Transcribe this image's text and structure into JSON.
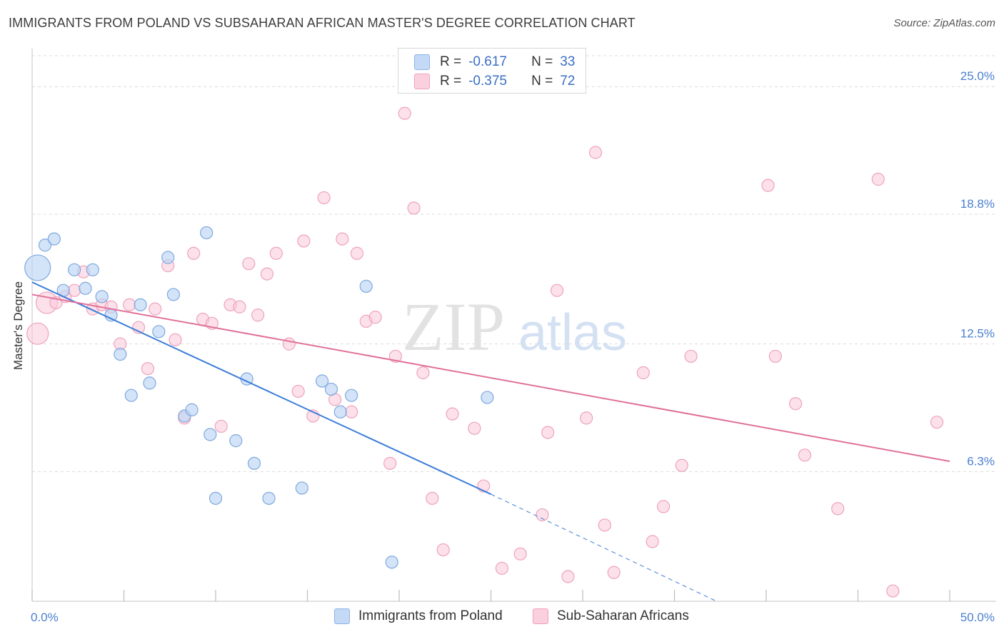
{
  "title": "IMMIGRANTS FROM POLAND VS SUBSAHARAN AFRICAN MASTER'S DEGREE CORRELATION CHART",
  "source": "Source: ZipAtlas.com",
  "watermark": {
    "zip": "ZIP",
    "atlas": "atlas"
  },
  "legend": {
    "rows": [
      {
        "r_label": "R =",
        "r_value": "-0.617",
        "n_label": "N =",
        "n_value": "33"
      },
      {
        "r_label": "R =",
        "r_value": "-0.375",
        "n_label": "N =",
        "n_value": "72"
      }
    ]
  },
  "chart_data": {
    "type": "scatter",
    "title": "IMMIGRANTS FROM POLAND VS SUBSAHARAN AFRICAN MASTER'S DEGREE CORRELATION CHART",
    "xlabel": "",
    "ylabel": "Master's Degree",
    "xlim": [
      0,
      50
    ],
    "ylim": [
      0,
      26.5
    ],
    "x_tick_labels": [
      "0.0%",
      "50.0%"
    ],
    "y_ticks": [
      6.3,
      12.5,
      18.8,
      25.0
    ],
    "y_tick_labels": [
      "6.3%",
      "12.5%",
      "18.8%",
      "25.0%"
    ],
    "grid": "horizontal dashed",
    "legend_position": "top-center",
    "colors": {
      "poland": "#a8c8f0",
      "poland_line": "#3b7dd8",
      "subsaharan": "#f6b7cc",
      "subsaharan_line": "#e0709a",
      "tick": "#4a7fd0"
    },
    "series": [
      {
        "name": "Immigrants from Poland",
        "r": -0.617,
        "n": 33,
        "trend": {
          "x": [
            0,
            25
          ],
          "y": [
            15.5,
            5.2
          ],
          "dashed_extension": {
            "x": [
              25,
              37.3
            ],
            "y": [
              5.2,
              0
            ]
          }
        },
        "points": [
          {
            "x": 0.3,
            "y": 16.2,
            "s": 3
          },
          {
            "x": 0.7,
            "y": 17.3,
            "s": 1
          },
          {
            "x": 1.2,
            "y": 17.6,
            "s": 1
          },
          {
            "x": 1.7,
            "y": 15.1,
            "s": 1
          },
          {
            "x": 2.3,
            "y": 16.1,
            "s": 1
          },
          {
            "x": 2.9,
            "y": 15.2,
            "s": 1
          },
          {
            "x": 3.3,
            "y": 16.1,
            "s": 1
          },
          {
            "x": 3.8,
            "y": 14.8,
            "s": 1
          },
          {
            "x": 4.3,
            "y": 13.9,
            "s": 1
          },
          {
            "x": 4.8,
            "y": 12.0,
            "s": 1
          },
          {
            "x": 5.4,
            "y": 10.0,
            "s": 1
          },
          {
            "x": 5.9,
            "y": 14.4,
            "s": 1
          },
          {
            "x": 6.4,
            "y": 10.6,
            "s": 1
          },
          {
            "x": 6.9,
            "y": 13.1,
            "s": 1
          },
          {
            "x": 7.4,
            "y": 16.7,
            "s": 1
          },
          {
            "x": 7.7,
            "y": 14.9,
            "s": 1
          },
          {
            "x": 8.3,
            "y": 9.0,
            "s": 1
          },
          {
            "x": 8.7,
            "y": 9.3,
            "s": 1
          },
          {
            "x": 9.5,
            "y": 17.9,
            "s": 1
          },
          {
            "x": 9.7,
            "y": 8.1,
            "s": 1
          },
          {
            "x": 10.0,
            "y": 5.0,
            "s": 1
          },
          {
            "x": 11.1,
            "y": 7.8,
            "s": 1
          },
          {
            "x": 11.7,
            "y": 10.8,
            "s": 1
          },
          {
            "x": 12.1,
            "y": 6.7,
            "s": 1
          },
          {
            "x": 12.9,
            "y": 5.0,
            "s": 1
          },
          {
            "x": 14.7,
            "y": 5.5,
            "s": 1
          },
          {
            "x": 15.8,
            "y": 10.7,
            "s": 1
          },
          {
            "x": 16.3,
            "y": 10.3,
            "s": 1
          },
          {
            "x": 16.8,
            "y": 9.2,
            "s": 1
          },
          {
            "x": 17.4,
            "y": 10.0,
            "s": 1
          },
          {
            "x": 18.2,
            "y": 15.3,
            "s": 1
          },
          {
            "x": 19.6,
            "y": 1.9,
            "s": 1
          },
          {
            "x": 24.8,
            "y": 9.9,
            "s": 1
          }
        ]
      },
      {
        "name": "Sub-Saharan Africans",
        "r": -0.375,
        "n": 72,
        "trend": {
          "x": [
            0,
            50
          ],
          "y": [
            14.9,
            6.8
          ]
        },
        "points": [
          {
            "x": 0.3,
            "y": 13.0,
            "s": 2
          },
          {
            "x": 0.8,
            "y": 14.5,
            "s": 2
          },
          {
            "x": 1.3,
            "y": 14.5,
            "s": 1
          },
          {
            "x": 1.8,
            "y": 14.8,
            "s": 1
          },
          {
            "x": 2.3,
            "y": 15.1,
            "s": 1
          },
          {
            "x": 2.8,
            "y": 16.0,
            "s": 1
          },
          {
            "x": 3.3,
            "y": 14.2,
            "s": 1
          },
          {
            "x": 3.8,
            "y": 14.4,
            "s": 1
          },
          {
            "x": 4.3,
            "y": 14.3,
            "s": 1
          },
          {
            "x": 4.8,
            "y": 12.5,
            "s": 1
          },
          {
            "x": 5.3,
            "y": 14.4,
            "s": 1
          },
          {
            "x": 5.8,
            "y": 13.3,
            "s": 1
          },
          {
            "x": 6.3,
            "y": 11.3,
            "s": 1
          },
          {
            "x": 6.7,
            "y": 14.2,
            "s": 1
          },
          {
            "x": 7.4,
            "y": 16.3,
            "s": 1
          },
          {
            "x": 7.8,
            "y": 12.7,
            "s": 1
          },
          {
            "x": 8.3,
            "y": 8.9,
            "s": 1
          },
          {
            "x": 8.8,
            "y": 16.9,
            "s": 1
          },
          {
            "x": 9.3,
            "y": 13.7,
            "s": 1
          },
          {
            "x": 9.8,
            "y": 13.5,
            "s": 1
          },
          {
            "x": 10.3,
            "y": 8.5,
            "s": 1
          },
          {
            "x": 10.8,
            "y": 14.4,
            "s": 1
          },
          {
            "x": 11.3,
            "y": 14.3,
            "s": 1
          },
          {
            "x": 11.8,
            "y": 16.4,
            "s": 1
          },
          {
            "x": 12.3,
            "y": 13.9,
            "s": 1
          },
          {
            "x": 12.8,
            "y": 15.9,
            "s": 1
          },
          {
            "x": 13.3,
            "y": 16.9,
            "s": 1
          },
          {
            "x": 14.0,
            "y": 12.5,
            "s": 1
          },
          {
            "x": 14.5,
            "y": 10.2,
            "s": 1
          },
          {
            "x": 14.8,
            "y": 17.5,
            "s": 1
          },
          {
            "x": 15.3,
            "y": 9.0,
            "s": 1
          },
          {
            "x": 15.9,
            "y": 19.6,
            "s": 1
          },
          {
            "x": 16.5,
            "y": 9.8,
            "s": 1
          },
          {
            "x": 16.9,
            "y": 17.6,
            "s": 1
          },
          {
            "x": 17.4,
            "y": 9.2,
            "s": 1
          },
          {
            "x": 17.7,
            "y": 16.9,
            "s": 1
          },
          {
            "x": 18.2,
            "y": 13.6,
            "s": 1
          },
          {
            "x": 18.7,
            "y": 13.8,
            "s": 1
          },
          {
            "x": 19.5,
            "y": 6.7,
            "s": 1
          },
          {
            "x": 19.8,
            "y": 11.9,
            "s": 1
          },
          {
            "x": 20.3,
            "y": 23.7,
            "s": 1
          },
          {
            "x": 20.8,
            "y": 19.1,
            "s": 1
          },
          {
            "x": 21.3,
            "y": 11.1,
            "s": 1
          },
          {
            "x": 21.8,
            "y": 5.0,
            "s": 1
          },
          {
            "x": 22.4,
            "y": 2.5,
            "s": 1
          },
          {
            "x": 22.9,
            "y": 9.1,
            "s": 1
          },
          {
            "x": 24.1,
            "y": 8.4,
            "s": 1
          },
          {
            "x": 24.6,
            "y": 5.6,
            "s": 1
          },
          {
            "x": 25.6,
            "y": 1.6,
            "s": 1
          },
          {
            "x": 26.6,
            "y": 2.3,
            "s": 1
          },
          {
            "x": 27.8,
            "y": 4.2,
            "s": 1
          },
          {
            "x": 28.1,
            "y": 8.2,
            "s": 1
          },
          {
            "x": 28.6,
            "y": 15.1,
            "s": 1
          },
          {
            "x": 29.2,
            "y": 1.2,
            "s": 1
          },
          {
            "x": 30.2,
            "y": 8.9,
            "s": 1
          },
          {
            "x": 30.7,
            "y": 21.8,
            "s": 1
          },
          {
            "x": 31.2,
            "y": 3.7,
            "s": 1
          },
          {
            "x": 31.7,
            "y": 1.4,
            "s": 1
          },
          {
            "x": 33.3,
            "y": 11.1,
            "s": 1
          },
          {
            "x": 33.8,
            "y": 2.9,
            "s": 1
          },
          {
            "x": 34.4,
            "y": 4.6,
            "s": 1
          },
          {
            "x": 35.4,
            "y": 6.6,
            "s": 1
          },
          {
            "x": 35.9,
            "y": 11.9,
            "s": 1
          },
          {
            "x": 40.1,
            "y": 20.2,
            "s": 1
          },
          {
            "x": 40.5,
            "y": 11.9,
            "s": 1
          },
          {
            "x": 41.6,
            "y": 9.6,
            "s": 1
          },
          {
            "x": 42.1,
            "y": 7.1,
            "s": 1
          },
          {
            "x": 43.9,
            "y": 4.5,
            "s": 1
          },
          {
            "x": 46.1,
            "y": 20.5,
            "s": 1
          },
          {
            "x": 46.9,
            "y": 0.5,
            "s": 1
          },
          {
            "x": 49.3,
            "y": 8.7,
            "s": 1
          }
        ]
      }
    ]
  }
}
